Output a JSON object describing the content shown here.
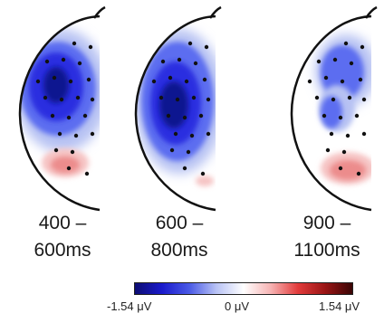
{
  "panels": [
    {
      "time_top": "400 –",
      "time_bottom": "600ms"
    },
    {
      "time_top": "600 –",
      "time_bottom": "800ms"
    },
    {
      "time_top": "900 –",
      "time_bottom": "1100ms"
    }
  ],
  "colorbar": {
    "min_label": "-1.54 μV",
    "mid_label": "0 μV",
    "max_label": "1.54 μV",
    "colors": [
      "#0d0d73",
      "#1a1acc",
      "#4a5ae6",
      "#b9c3f5",
      "#ffffff",
      "#f6b3b3",
      "#e23b3b",
      "#9a1515",
      "#3a0505"
    ]
  }
}
